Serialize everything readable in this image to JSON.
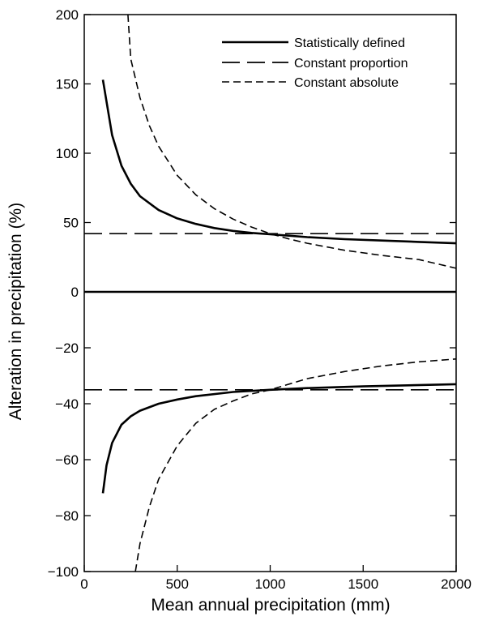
{
  "chart_data": {
    "type": "line",
    "xlabel": "Mean annual precipitation (mm)",
    "ylabel": "Alteration in precipitation (%)",
    "xlim": [
      0,
      2000
    ],
    "x_ticks": [
      0,
      500,
      1000,
      1500,
      2000
    ],
    "grid": false,
    "legend_position": "top-right",
    "panels": [
      {
        "name": "top",
        "ylim": [
          0,
          200
        ],
        "y_ticks": [
          0,
          50,
          100,
          150,
          200
        ],
        "series": [
          {
            "name": "Statistically defined",
            "style": "solid",
            "x": [
              100,
              150,
              200,
              250,
              300,
              400,
              500,
              600,
              700,
              800,
              900,
              1000,
              1100,
              1200,
              1400,
              1600,
              1800,
              2000
            ],
            "y": [
              153,
              113,
              91,
              78,
              69,
              59,
              53,
              49,
              46,
              44,
              42.5,
              41.5,
              40.5,
              39.5,
              38,
              37,
              36,
              35
            ]
          },
          {
            "name": "Constant proportion",
            "style": "long-dash",
            "x": [
              0,
              2000
            ],
            "y": [
              42,
              42
            ]
          },
          {
            "name": "Constant absolute",
            "style": "short-dash",
            "x": [
              235,
              250,
              300,
              350,
              400,
              500,
              600,
              700,
              800,
              900,
              1000,
              1100,
              1200,
              1400,
              1600,
              1800,
              2000
            ],
            "y": [
              200,
              168,
              140,
              120,
              105,
              84,
              70,
              60,
              52.5,
              46.7,
              42,
              38.2,
              35,
              30,
              26.3,
              23.3,
              17
            ]
          }
        ]
      },
      {
        "name": "bottom",
        "ylim": [
          -100,
          0
        ],
        "y_ticks": [
          -100,
          -80,
          -60,
          -40,
          -20,
          0
        ],
        "series": [
          {
            "name": "Statistically defined",
            "style": "solid",
            "x": [
              100,
              120,
              150,
              200,
              250,
              300,
              400,
              500,
              600,
              800,
              1000,
              1200,
              1500,
              2000
            ],
            "y": [
              -72,
              -62,
              -54,
              -47.5,
              -44.5,
              -42.5,
              -40,
              -38.5,
              -37.3,
              -35.8,
              -35,
              -34.4,
              -33.8,
              -33
            ]
          },
          {
            "name": "Constant proportion",
            "style": "long-dash",
            "x": [
              0,
              2000
            ],
            "y": [
              -35,
              -35
            ]
          },
          {
            "name": "Constant absolute",
            "style": "short-dash",
            "x": [
              275,
              300,
              350,
              400,
              500,
              600,
              700,
              800,
              900,
              1000,
              1200,
              1400,
              1600,
              1800,
              2000
            ],
            "y": [
              -100,
              -90,
              -77,
              -67,
              -55,
              -47,
              -42,
              -39,
              -36.5,
              -35,
              -31,
              -28.5,
              -26.5,
              -25,
              -24
            ]
          }
        ]
      }
    ]
  }
}
